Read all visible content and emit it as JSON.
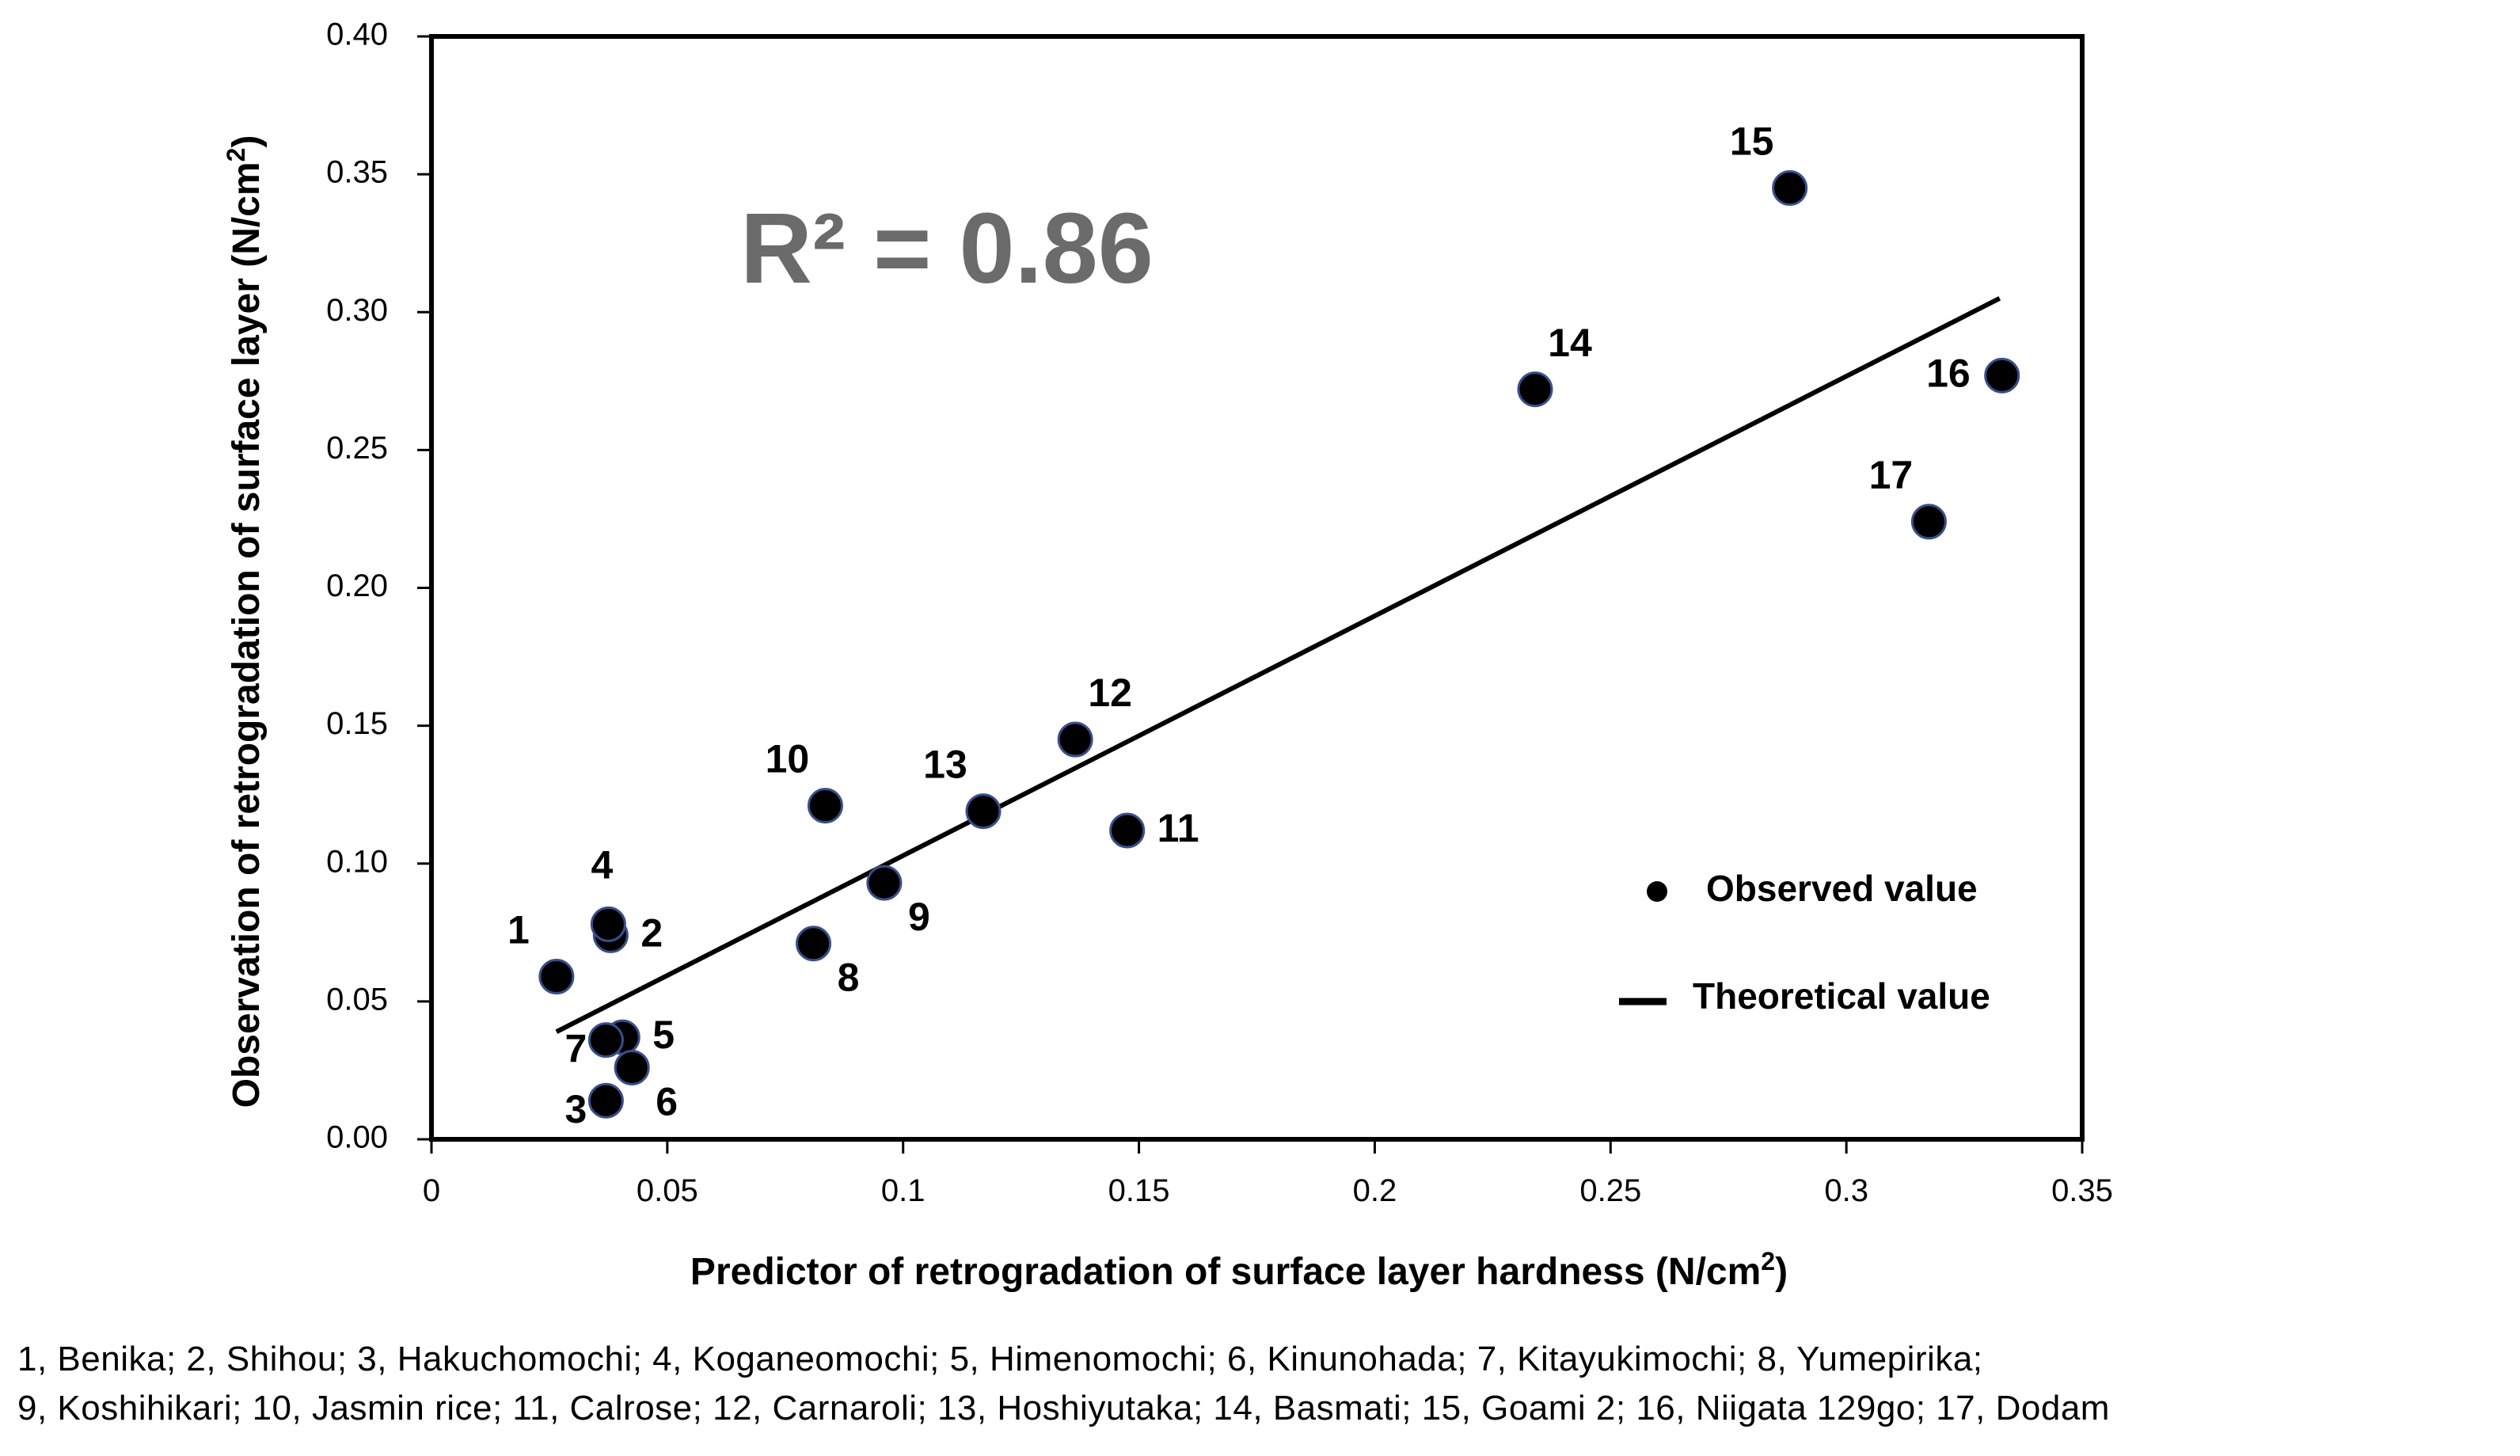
{
  "chart_data": {
    "type": "scatter",
    "title": "",
    "xlabel": "Predictor of  retrogradation of surface layer hardness (N/cm",
    "xlabel_sup": "2",
    "xlabel_end": ")",
    "ylabel": "Observation of retrogradation of surface layer (N/cm",
    "ylabel_sup": "2",
    "ylabel_end": ")",
    "xlim": [
      0,
      0.35
    ],
    "ylim": [
      0,
      0.4
    ],
    "x_ticks": [
      0,
      0.05,
      0.1,
      0.15,
      0.2,
      0.25,
      0.3,
      0.35
    ],
    "x_tick_labels": [
      "0",
      "0.05",
      "0.1",
      "0.15",
      "0.2",
      "0.25",
      "0.3",
      "0.35"
    ],
    "y_ticks": [
      0,
      0.05,
      0.1,
      0.15,
      0.2,
      0.25,
      0.3,
      0.35,
      0.4
    ],
    "y_tick_labels": [
      "0.00",
      "0.05",
      "0.10",
      "0.15",
      "0.20",
      "0.25",
      "0.30",
      "0.35",
      "0.40"
    ],
    "r_squared_text": "R² = 0.86",
    "series": [
      {
        "name": "Observed value",
        "points": [
          {
            "label": "1",
            "x": 0.0265,
            "y": 0.059,
            "label_pos": "upper-left"
          },
          {
            "label": "2",
            "x": 0.038,
            "y": 0.074,
            "label_pos": "right"
          },
          {
            "label": "3",
            "x": 0.037,
            "y": 0.014,
            "label_pos": "lower-left"
          },
          {
            "label": "4",
            "x": 0.0375,
            "y": 0.078,
            "label_pos": "above"
          },
          {
            "label": "5",
            "x": 0.0405,
            "y": 0.037,
            "label_pos": "right"
          },
          {
            "label": "6",
            "x": 0.0425,
            "y": 0.026,
            "label_pos": "lower-right"
          },
          {
            "label": "7",
            "x": 0.037,
            "y": 0.036,
            "label_pos": "lower-left"
          },
          {
            "label": "8",
            "x": 0.081,
            "y": 0.071,
            "label_pos": "lower-right"
          },
          {
            "label": "9",
            "x": 0.096,
            "y": 0.093,
            "label_pos": "lower-right"
          },
          {
            "label": "10",
            "x": 0.0835,
            "y": 0.121,
            "label_pos": "upper-left"
          },
          {
            "label": "11",
            "x": 0.1475,
            "y": 0.112,
            "label_pos": "right"
          },
          {
            "label": "12",
            "x": 0.1365,
            "y": 0.145,
            "label_pos": "upper-right"
          },
          {
            "label": "13",
            "x": 0.117,
            "y": 0.119,
            "label_pos": "upper-left"
          },
          {
            "label": "14",
            "x": 0.234,
            "y": 0.272,
            "label_pos": "upper-right"
          },
          {
            "label": "15",
            "x": 0.288,
            "y": 0.345,
            "label_pos": "upper-left"
          },
          {
            "label": "16",
            "x": 0.333,
            "y": 0.277,
            "label_pos": "left"
          },
          {
            "label": "17",
            "x": 0.3175,
            "y": 0.224,
            "label_pos": "upper-left"
          }
        ]
      },
      {
        "name": "Theoretical value",
        "type": "line",
        "x": [
          0.0265,
          0.3325
        ],
        "y": [
          0.039,
          0.305
        ]
      }
    ],
    "legend": {
      "position": "lower-right",
      "entries": [
        "Observed value",
        "Theoretical value"
      ]
    }
  },
  "footnote": {
    "line1": "1, Benika; 2, Shihou; 3, Hakuchomochi; 4, Koganeomochi; 5, Himenomochi; 6, Kinunohada; 7, Kitayukimochi; 8, Yumepirika;",
    "line2": "9, Koshihikari; 10, Jasmin rice; 11, Calrose; 12, Carnaroli; 13, Hoshiyutaka; 14, Basmati; 15, Goami 2; 16, Niigata 129go; 17, Dodam"
  },
  "colors": {
    "marker_fill": "#000000",
    "marker_stroke": "#3a4f8a",
    "line": "#000000",
    "r_squared_text": "#6b6b6b"
  }
}
